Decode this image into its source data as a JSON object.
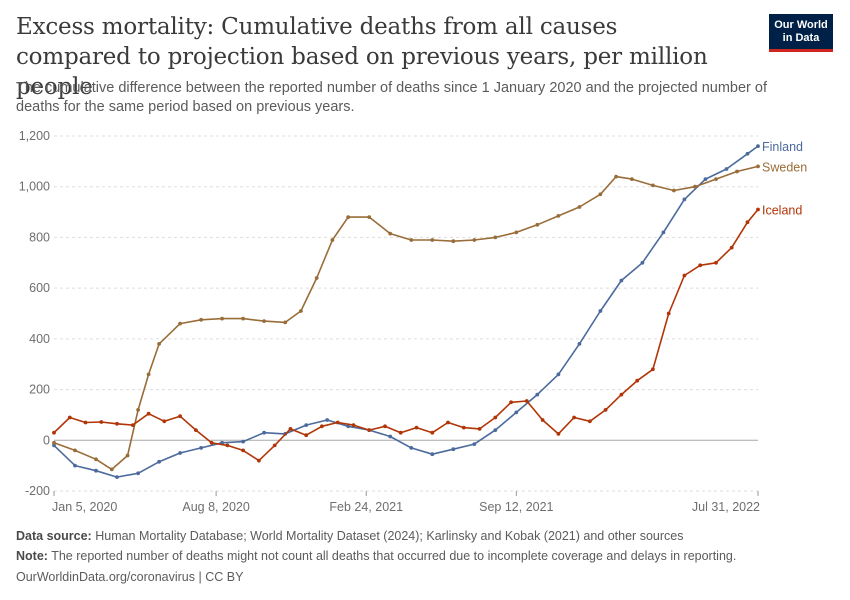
{
  "header": {
    "title": "Excess mortality: Cumulative deaths from all causes compared to projection based on previous years, per million people",
    "subtitle": "The cumulative difference between the reported number of deaths since 1 January 2020 and the projected number of deaths for the same period based on previous years."
  },
  "logo": {
    "line1": "Our World",
    "line2": "in Data"
  },
  "footer": {
    "source_label": "Data source:",
    "source_text": "Human Mortality Database; World Mortality Dataset (2024); Karlinsky and Kobak (2021) and other sources",
    "note_label": "Note:",
    "note_text": "The reported number of deaths might not count all deaths that occurred due to incomplete coverage and delays in reporting.",
    "credit": "OurWorldinData.org/coronavirus | CC BY"
  },
  "chart_data": {
    "type": "line",
    "x_start": "2020-01-05",
    "x_end": "2022-07-31",
    "x_ticks": [
      {
        "date": "2020-01-05",
        "label": "Jan 5, 2020"
      },
      {
        "date": "2020-08-08",
        "label": "Aug 8, 2020"
      },
      {
        "date": "2021-02-24",
        "label": "Feb 24, 2021"
      },
      {
        "date": "2021-09-12",
        "label": "Sep 12, 2021"
      },
      {
        "date": "2022-07-31",
        "label": "Jul 31, 2022"
      }
    ],
    "y_ticks": [
      -200,
      0,
      200,
      400,
      600,
      800,
      1000,
      1200
    ],
    "y_tick_labels": [
      "-200",
      "0",
      "200",
      "400",
      "600",
      "800",
      "1,000",
      "1,200"
    ],
    "ylim": [
      -200,
      1200
    ],
    "grid": true,
    "series": [
      {
        "name": "Finland",
        "color": "#4c6a9c",
        "points": [
          [
            "2020-01-05",
            -20
          ],
          [
            "2020-02-02",
            -100
          ],
          [
            "2020-03-01",
            -120
          ],
          [
            "2020-03-29",
            -145
          ],
          [
            "2020-04-26",
            -130
          ],
          [
            "2020-05-24",
            -85
          ],
          [
            "2020-06-21",
            -50
          ],
          [
            "2020-07-19",
            -30
          ],
          [
            "2020-08-16",
            -10
          ],
          [
            "2020-09-13",
            -5
          ],
          [
            "2020-10-11",
            30
          ],
          [
            "2020-11-08",
            25
          ],
          [
            "2020-12-06",
            60
          ],
          [
            "2021-01-03",
            80
          ],
          [
            "2021-01-31",
            55
          ],
          [
            "2021-02-28",
            40
          ],
          [
            "2021-03-28",
            15
          ],
          [
            "2021-04-25",
            -30
          ],
          [
            "2021-05-23",
            -55
          ],
          [
            "2021-06-20",
            -35
          ],
          [
            "2021-07-18",
            -15
          ],
          [
            "2021-08-15",
            40
          ],
          [
            "2021-09-12",
            110
          ],
          [
            "2021-10-10",
            180
          ],
          [
            "2021-11-07",
            260
          ],
          [
            "2021-12-05",
            380
          ],
          [
            "2022-01-02",
            510
          ],
          [
            "2022-01-30",
            630
          ],
          [
            "2022-02-27",
            700
          ],
          [
            "2022-03-27",
            820
          ],
          [
            "2022-04-24",
            950
          ],
          [
            "2022-05-22",
            1030
          ],
          [
            "2022-06-19",
            1070
          ],
          [
            "2022-07-17",
            1130
          ],
          [
            "2022-07-31",
            1160
          ]
        ]
      },
      {
        "name": "Sweden",
        "color": "#996d39",
        "points": [
          [
            "2020-01-05",
            -10
          ],
          [
            "2020-02-02",
            -40
          ],
          [
            "2020-03-01",
            -75
          ],
          [
            "2020-03-22",
            -115
          ],
          [
            "2020-04-12",
            -60
          ],
          [
            "2020-04-26",
            120
          ],
          [
            "2020-05-10",
            260
          ],
          [
            "2020-05-24",
            380
          ],
          [
            "2020-06-21",
            460
          ],
          [
            "2020-07-19",
            475
          ],
          [
            "2020-08-16",
            480
          ],
          [
            "2020-09-13",
            480
          ],
          [
            "2020-10-11",
            470
          ],
          [
            "2020-11-08",
            465
          ],
          [
            "2020-11-29",
            510
          ],
          [
            "2020-12-20",
            640
          ],
          [
            "2021-01-10",
            790
          ],
          [
            "2021-01-31",
            880
          ],
          [
            "2021-02-28",
            880
          ],
          [
            "2021-03-28",
            815
          ],
          [
            "2021-04-25",
            790
          ],
          [
            "2021-05-23",
            790
          ],
          [
            "2021-06-20",
            785
          ],
          [
            "2021-07-18",
            790
          ],
          [
            "2021-08-15",
            800
          ],
          [
            "2021-09-12",
            820
          ],
          [
            "2021-10-10",
            850
          ],
          [
            "2021-11-07",
            885
          ],
          [
            "2021-12-05",
            920
          ],
          [
            "2022-01-02",
            970
          ],
          [
            "2022-01-23",
            1040
          ],
          [
            "2022-02-13",
            1030
          ],
          [
            "2022-03-13",
            1005
          ],
          [
            "2022-04-10",
            985
          ],
          [
            "2022-05-08",
            1000
          ],
          [
            "2022-06-05",
            1030
          ],
          [
            "2022-07-03",
            1060
          ],
          [
            "2022-07-31",
            1080
          ]
        ]
      },
      {
        "name": "Iceland",
        "color": "#b13507",
        "points": [
          [
            "2020-01-05",
            30
          ],
          [
            "2020-01-26",
            90
          ],
          [
            "2020-02-16",
            70
          ],
          [
            "2020-03-08",
            72
          ],
          [
            "2020-03-29",
            65
          ],
          [
            "2020-04-19",
            60
          ],
          [
            "2020-05-10",
            105
          ],
          [
            "2020-05-31",
            75
          ],
          [
            "2020-06-21",
            95
          ],
          [
            "2020-07-12",
            40
          ],
          [
            "2020-08-02",
            -10
          ],
          [
            "2020-08-23",
            -20
          ],
          [
            "2020-09-13",
            -40
          ],
          [
            "2020-10-04",
            -80
          ],
          [
            "2020-10-25",
            -20
          ],
          [
            "2020-11-15",
            45
          ],
          [
            "2020-12-06",
            20
          ],
          [
            "2020-12-27",
            55
          ],
          [
            "2021-01-17",
            70
          ],
          [
            "2021-02-07",
            60
          ],
          [
            "2021-02-28",
            40
          ],
          [
            "2021-03-21",
            55
          ],
          [
            "2021-04-11",
            30
          ],
          [
            "2021-05-02",
            50
          ],
          [
            "2021-05-23",
            30
          ],
          [
            "2021-06-13",
            70
          ],
          [
            "2021-07-04",
            50
          ],
          [
            "2021-07-25",
            45
          ],
          [
            "2021-08-15",
            90
          ],
          [
            "2021-09-05",
            150
          ],
          [
            "2021-09-26",
            155
          ],
          [
            "2021-10-17",
            80
          ],
          [
            "2021-11-07",
            25
          ],
          [
            "2021-11-28",
            90
          ],
          [
            "2021-12-19",
            75
          ],
          [
            "2022-01-09",
            120
          ],
          [
            "2022-01-30",
            180
          ],
          [
            "2022-02-20",
            235
          ],
          [
            "2022-03-13",
            280
          ],
          [
            "2022-04-03",
            500
          ],
          [
            "2022-04-24",
            650
          ],
          [
            "2022-05-15",
            690
          ],
          [
            "2022-06-05",
            700
          ],
          [
            "2022-06-26",
            760
          ],
          [
            "2022-07-17",
            860
          ],
          [
            "2022-07-31",
            910
          ]
        ]
      }
    ]
  }
}
